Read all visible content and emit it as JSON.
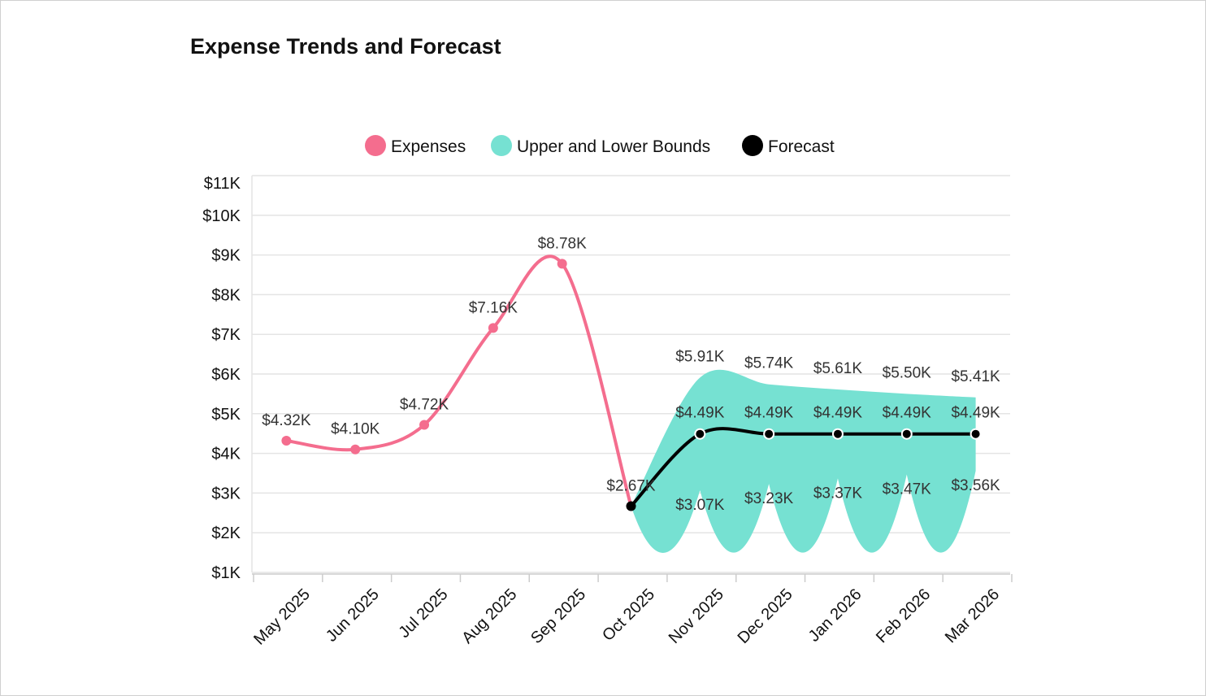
{
  "title": "Expense Trends and Forecast",
  "chart_data": {
    "type": "line",
    "title": "Expense Trends and Forecast",
    "categories": [
      "May 2025",
      "Jun 2025",
      "Jul 2025",
      "Aug 2025",
      "Sep 2025",
      "Oct 2025",
      "Nov 2025",
      "Dec 2025",
      "Jan 2026",
      "Feb 2026",
      "Mar 2026"
    ],
    "ylim": [
      1000,
      11000
    ],
    "yticks": [
      1000,
      2000,
      3000,
      4000,
      5000,
      6000,
      7000,
      8000,
      9000,
      10000,
      11000
    ],
    "ytick_labels": [
      "$1K",
      "$2K",
      "$3K",
      "$4K",
      "$5K",
      "$6K",
      "$7K",
      "$8K",
      "$9K",
      "$10K",
      "$11K"
    ],
    "grid": true,
    "legend_position": "top",
    "series": [
      {
        "name": "Expenses",
        "color": "#f46d8e",
        "values": [
          4320,
          4100,
          4720,
          7160,
          8780,
          2670,
          null,
          null,
          null,
          null,
          null
        ],
        "labels": [
          "$4.32K",
          "$4.10K",
          "$4.72K",
          "$7.16K",
          "$8.78K",
          "$2.67K",
          null,
          null,
          null,
          null,
          null
        ]
      },
      {
        "name": "Upper and Lower Bounds",
        "color": "#76e1d2",
        "type": "range_area",
        "upper": [
          null,
          null,
          null,
          null,
          null,
          2670,
          5910,
          5740,
          5610,
          5500,
          5410
        ],
        "lower": [
          null,
          null,
          null,
          null,
          null,
          2670,
          3070,
          3230,
          3370,
          3470,
          3560
        ],
        "upper_labels": [
          null,
          null,
          null,
          null,
          null,
          null,
          "$5.91K",
          "$5.74K",
          "$5.61K",
          "$5.50K",
          "$5.41K"
        ],
        "lower_labels": [
          null,
          null,
          null,
          null,
          null,
          null,
          "$3.07K",
          "$3.23K",
          "$3.37K",
          "$3.47K",
          "$3.56K"
        ]
      },
      {
        "name": "Forecast",
        "color": "#000000",
        "values": [
          null,
          null,
          null,
          null,
          null,
          2670,
          4490,
          4490,
          4490,
          4490,
          4490
        ],
        "labels": [
          null,
          null,
          null,
          null,
          null,
          null,
          "$4.49K",
          "$4.49K",
          "$4.49K",
          "$4.49K",
          "$4.49K"
        ]
      }
    ]
  }
}
